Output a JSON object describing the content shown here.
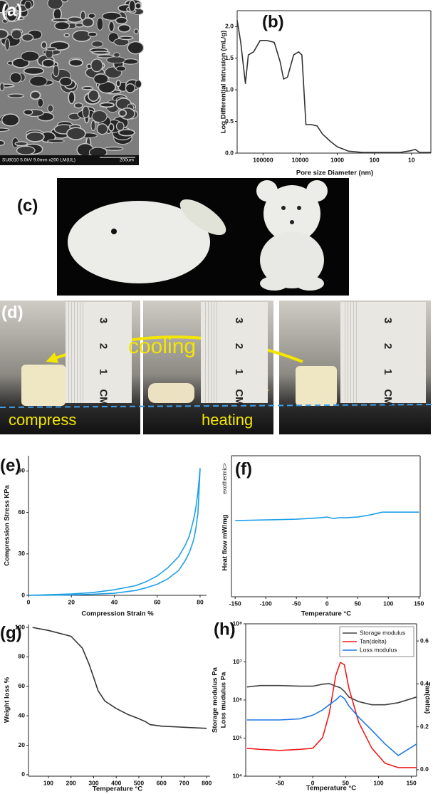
{
  "panels": {
    "a": {
      "label": "(a)",
      "info": "SU8010 5.0kV 9.0mm x200 LM(UL)",
      "scale": "200um"
    },
    "c": {
      "label": "(c)"
    },
    "d": {
      "label": "(d)",
      "annotations": [
        "cooling",
        "compress",
        "heating"
      ],
      "ruler_labels": [
        "3",
        "2",
        "1",
        "CM"
      ]
    }
  },
  "chart_data": [
    {
      "type": "line",
      "label": "(b)",
      "xlabel": "Pore size Diameter (nm)",
      "ylabel": "Log Differential Intrusion (mL/g)",
      "xscale": "log",
      "x": [
        500000,
        400000,
        300000,
        250000,
        180000,
        120000,
        80000,
        50000,
        35000,
        28000,
        22000,
        15000,
        11000,
        9000,
        7000,
        5000,
        3500,
        2500,
        1500,
        1000,
        500,
        200,
        50,
        20,
        10,
        8,
        6,
        3
      ],
      "series": [
        {
          "color": "#333333",
          "values": [
            2.1,
            1.75,
            1.1,
            1.55,
            1.6,
            1.78,
            1.78,
            1.75,
            1.45,
            1.17,
            1.2,
            1.55,
            1.6,
            1.55,
            0.45,
            0.45,
            0.43,
            0.3,
            0.18,
            0.1,
            0.03,
            0.01,
            0.01,
            0.01,
            0.04,
            0.06,
            0.01,
            0.01
          ]
        }
      ],
      "xlim": [
        500000,
        3
      ],
      "ylim": [
        0,
        2.25
      ],
      "xticks": [
        100000,
        10000,
        1000,
        100,
        10
      ],
      "yticks": [
        {
          "value": 0,
          "label": "0.0"
        },
        {
          "value": 0.5,
          "label": "0.5"
        },
        {
          "value": 1,
          "label": "1.0"
        },
        {
          "value": 1.5,
          "label": "1.5"
        },
        {
          "value": 2,
          "label": "2.0"
        }
      ]
    },
    {
      "type": "line",
      "label": "(e)",
      "xlabel": "Compression Strain %",
      "ylabel": "Compression Stress KPa",
      "x": [
        0,
        10,
        20,
        30,
        40,
        50,
        55,
        60,
        65,
        70,
        73,
        75,
        77,
        78,
        79,
        80
      ],
      "series": [
        {
          "color": "#1ea0e6",
          "values": [
            0,
            0.5,
            1,
            2,
            4,
            7,
            10,
            14,
            20,
            28,
            36,
            43,
            55,
            63,
            75,
            92
          ]
        },
        {
          "color": "#1ea0e6",
          "values": [
            0,
            0.1,
            0.3,
            0.8,
            1.5,
            3.5,
            5.5,
            8,
            12,
            18,
            25,
            31,
            40,
            48,
            60,
            92
          ]
        }
      ],
      "xlim": [
        0,
        83
      ],
      "ylim": [
        0,
        101
      ],
      "xticks": [
        0,
        20,
        40,
        60,
        80
      ],
      "yticks": [
        0,
        30,
        60,
        90
      ]
    },
    {
      "type": "line",
      "label": "(f)",
      "xlabel": "Temperature °C",
      "ylabel": "Heat flow mW/mg",
      "annotation": "exothermic>",
      "x": [
        -150,
        -100,
        -50,
        -10,
        0,
        10,
        20,
        30,
        50,
        70,
        90,
        110,
        150
      ],
      "series": [
        {
          "color": "#1ea0e6",
          "values": [
            0.54,
            0.545,
            0.55,
            0.56,
            0.565,
            0.555,
            0.56,
            0.56,
            0.565,
            0.58,
            0.6,
            0.6,
            0.6
          ]
        }
      ],
      "xlim": [
        -156,
        152
      ],
      "ylim": [
        0,
        1
      ],
      "xticks": [
        -150,
        -100,
        -50,
        0,
        50,
        100,
        150
      ]
    },
    {
      "type": "line",
      "label": "(g)",
      "xlabel": "Temperature °C",
      "ylabel": "Weight loss %",
      "x": [
        30,
        100,
        200,
        250,
        280,
        300,
        320,
        350,
        400,
        450,
        500,
        530,
        550,
        600,
        700,
        800
      ],
      "series": [
        {
          "color": "#333333",
          "values": [
            100,
            98,
            94,
            86,
            75,
            66,
            57,
            50,
            45,
            41,
            38,
            36,
            34,
            33,
            32.2,
            31.5
          ]
        }
      ],
      "xlim": [
        12,
        815
      ],
      "ylim": [
        -1,
        102
      ],
      "xticks": [
        100,
        200,
        300,
        400,
        500,
        600,
        700,
        800
      ],
      "yticks": [
        0,
        20,
        40,
        60,
        80,
        100
      ]
    },
    {
      "type": "line",
      "label": "(h)",
      "xlabel": "Temperature °C",
      "ylabel": "Storage modulus Pa",
      "ylabel2": "Loss mudulus Pa",
      "y2label": "Tan(delta)",
      "yscale": "log",
      "legend": "upper right",
      "x": [
        -100,
        -80,
        -50,
        -20,
        0,
        15,
        25,
        35,
        42,
        48,
        55,
        70,
        90,
        110,
        130,
        158
      ],
      "series": [
        {
          "name": "Storage modulus",
          "color": "#404040",
          "values": [
            2200000,
            2400000,
            2400000,
            2300000,
            2300000,
            2600000,
            2700000,
            2300000,
            2100000,
            1700000,
            1200000,
            900000,
            750000,
            750000,
            850000,
            1200000
          ]
        },
        {
          "name": "Tan(delta)",
          "color": "#ee1c1c",
          "axis": "y2",
          "values": [
            0.1,
            0.095,
            0.09,
            0.095,
            0.1,
            0.15,
            0.26,
            0.44,
            0.5,
            0.49,
            0.38,
            0.22,
            0.1,
            0.03,
            0.01,
            0.01
          ]
        },
        {
          "name": "Loss modulus",
          "color": "#1e78e6",
          "values": [
            300000,
            300000,
            300000,
            320000,
            400000,
            550000,
            750000,
            1000000,
            1300000,
            1100000,
            700000,
            350000,
            160000,
            70000,
            35000,
            70000
          ]
        }
      ],
      "xlim": [
        -102,
        158
      ],
      "ylim": [
        10000,
        100000000
      ],
      "y2lim": [
        -0.03,
        0.68
      ],
      "xticks": [
        -50,
        0,
        50,
        100,
        150
      ],
      "yticks": [
        {
          "value": 10000,
          "label": "10⁴"
        },
        {
          "value": 100000,
          "label": "10⁵"
        },
        {
          "value": 1000000,
          "label": "10⁶"
        },
        {
          "value": 10000000,
          "label": "10⁷"
        },
        {
          "value": 100000000,
          "label": "10⁸"
        }
      ],
      "y2ticks": [
        {
          "value": 0,
          "label": "0.0"
        },
        {
          "value": 0.2,
          "label": "0.2"
        },
        {
          "value": 0.4,
          "label": "0.4"
        },
        {
          "value": 0.6,
          "label": "0.6"
        }
      ]
    }
  ]
}
